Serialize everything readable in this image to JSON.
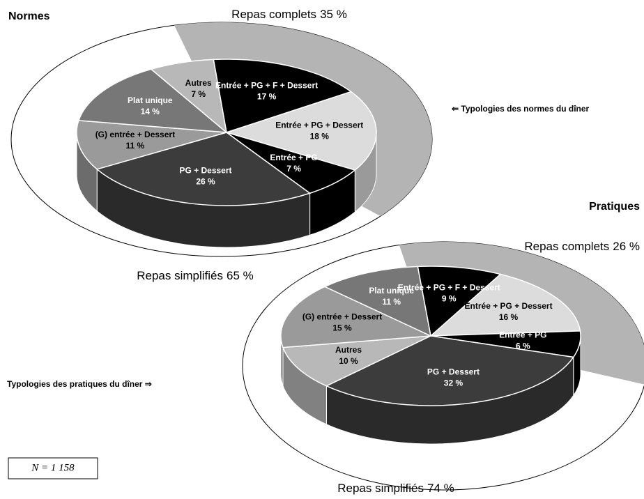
{
  "chart_data": [
    {
      "type": "pie3d",
      "title": "Normes",
      "categories": [
        "Entrée + PG + F + Dessert",
        "Entrée + PG + Dessert",
        "Entrée + PG",
        "PG + Dessert",
        "(G) entrée + Dessert",
        "Plat unique",
        "Autres"
      ],
      "values": [
        17,
        18,
        7,
        26,
        11,
        14,
        7
      ],
      "value_labels": [
        "17 %",
        "18 %",
        "7 %",
        "26 %",
        "11 %",
        "14 %",
        "7 %"
      ],
      "colors": [
        "#000000",
        "#dcdcdc",
        "#000000",
        "#3c3c3c",
        "#9a9a9a",
        "#777777",
        "#b8b8b8"
      ],
      "groups": [
        "Repas complets",
        "Repas simplifiés"
      ],
      "group_values": [
        35,
        65
      ],
      "group_value_labels": [
        "35 %",
        "65 %"
      ],
      "annotation": "⇐ Typologies des normes du dîner"
    },
    {
      "type": "pie3d",
      "title": "Pratiques",
      "categories": [
        "Entrée + PG + F + Dessert",
        "Entrée + PG + Dessert",
        "Entrée + PG",
        "PG + Dessert",
        "Autres",
        "(G) entrée + Dessert",
        "Plat unique"
      ],
      "values": [
        9,
        16,
        6,
        32,
        10,
        15,
        11
      ],
      "value_labels": [
        "9 %",
        "16 %",
        "6 %",
        "32 %",
        "10 %",
        "15 %",
        "11 %"
      ],
      "colors": [
        "#000000",
        "#dcdcdc",
        "#000000",
        "#3c3c3c",
        "#b8b8b8",
        "#9a9a9a",
        "#777777"
      ],
      "groups": [
        "Repas complets",
        "Repas simplifiés"
      ],
      "group_values": [
        26,
        74
      ],
      "group_value_labels": [
        "26 %",
        "74 %"
      ],
      "annotation": "Typologies des pratiques du dîner ⇒"
    }
  ],
  "note": "N = 1 158"
}
